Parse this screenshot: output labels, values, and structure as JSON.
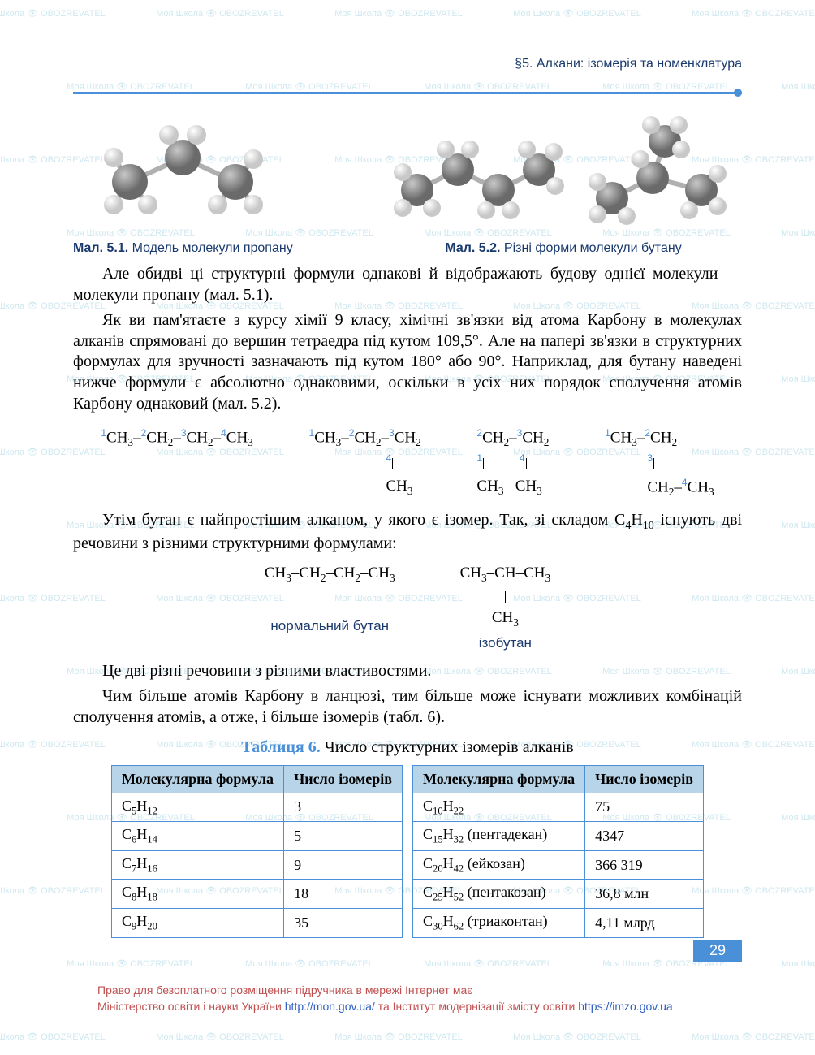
{
  "section_header": "§5. Алкани: ізомерія та номенклатура",
  "figures": {
    "fig1": {
      "label": "Мал. 5.1.",
      "caption": "Модель молекули пропану"
    },
    "fig2": {
      "label": "Мал. 5.2.",
      "caption": "Різні форми молекули бутану"
    }
  },
  "molecule_colors": {
    "carbon": "#8a8a8a",
    "hydrogen": "#e8e8e8",
    "carbon_stroke": "#6a6a6a",
    "hydrogen_stroke": "#c8c8c8",
    "bond": "#b0b0b0"
  },
  "paragraphs": {
    "p1": "Але обидві ці структурні формули однакові й відображають будову однієї молекули — молекули пропану (мал. 5.1).",
    "p2": "Як ви пам'ятаєте з курсу хімії 9 класу, хімічні зв'язки від атома Карбону в молекулах алканів спрямовані до вершин тетраедра під кутом 109,5°. Але на папері зв'язки в структурних формулах для зручності зазначають під кутом 180° або 90°. Наприклад, для бутану наведені нижче формули є абсолютно однаковими, оскільки в усіх них порядок сполучення атомів Карбону однаковий (мал. 5.2).",
    "p3_a": "Утім бутан є найпростішим алканом, у якого є ізомер. Так, зі складом C",
    "p3_b": " існують дві речовини з різними структурними формулами:",
    "p4": "Це дві різні речовини з різними властивостями.",
    "p5": "Чим більше атомів Карбону в ланцюзі, тим більше може існувати можливих комбінацій сполучення атомів, а отже, і більше ізомерів (табл. 6)."
  },
  "isomers": {
    "normal_label": "нормальний бутан",
    "iso_label": "ізобутан"
  },
  "table": {
    "title_label": "Таблиця 6.",
    "title_text": "Число структурних ізомерів алканів",
    "headers": {
      "formula": "Молекулярна формула",
      "count": "Число ізомерів"
    },
    "left_rows": [
      {
        "c": "5",
        "h": "12",
        "name": "",
        "count": "3"
      },
      {
        "c": "6",
        "h": "14",
        "name": "",
        "count": "5"
      },
      {
        "c": "7",
        "h": "16",
        "name": "",
        "count": "9"
      },
      {
        "c": "8",
        "h": "18",
        "name": "",
        "count": "18"
      },
      {
        "c": "9",
        "h": "20",
        "name": "",
        "count": "35"
      }
    ],
    "right_rows": [
      {
        "c": "10",
        "h": "22",
        "name": "",
        "count": "75"
      },
      {
        "c": "15",
        "h": "32",
        "name": " (пентадекан)",
        "count": "4347"
      },
      {
        "c": "20",
        "h": "42",
        "name": " (ейкозан)",
        "count": "366 319"
      },
      {
        "c": "25",
        "h": "52",
        "name": " (пентакозан)",
        "count": "36,8 млн"
      },
      {
        "c": "30",
        "h": "62",
        "name": " (триаконтан)",
        "count": "4,11 млрд"
      }
    ]
  },
  "formula_subscripts": {
    "c4h10_c": "4",
    "c4h10_h": "10"
  },
  "page_number": "29",
  "footer": {
    "line1": "Право для безоплатного розміщення підручника в мережі Інтернет має",
    "line2_a": "Міністерство освіти і науки України ",
    "line2_url1": "http://mon.gov.ua/",
    "line2_b": " та Інститут модернізації змісту освіти ",
    "line2_url2": "https://imzo.gov.ua"
  },
  "watermark_text": "Моя Школа 👁 OBOZREVATEL",
  "colors": {
    "accent": "#4a90d9",
    "header_text": "#1a3a6e",
    "table_header_bg": "#b8d4e8",
    "footer_text": "#c05050"
  }
}
